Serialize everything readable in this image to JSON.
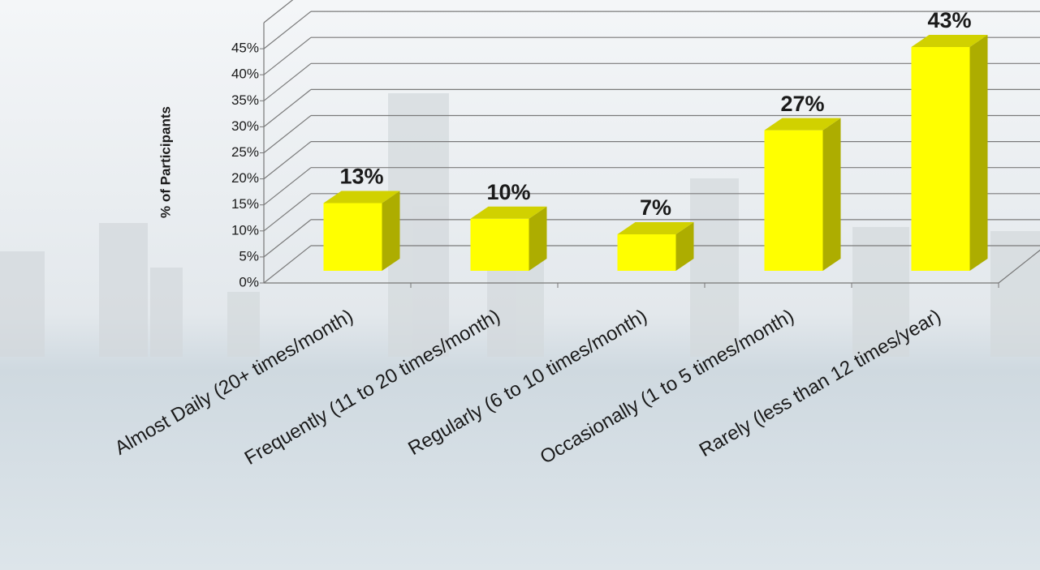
{
  "chart_data": {
    "type": "bar",
    "y_label": "% of Participants",
    "categories": [
      "Almost Daily (20+ times/month)",
      "Frequently (11 to 20 times/month)",
      "Regularly (6 to 10 times/month)",
      "Occasionally (1 to 5 times/month)",
      "Rarely (less than 12 times/year)"
    ],
    "values": [
      13,
      10,
      7,
      27,
      43
    ],
    "value_labels": [
      "13%",
      "10%",
      "7%",
      "27%",
      "43%"
    ],
    "color": "#ffff00",
    "ylim": [
      0,
      50
    ],
    "yticks": [
      {
        "value": 0,
        "label": "0%"
      },
      {
        "value": 5,
        "label": "5%"
      },
      {
        "value": 10,
        "label": "10%"
      },
      {
        "value": 15,
        "label": "15%"
      },
      {
        "value": 20,
        "label": "20%"
      },
      {
        "value": 25,
        "label": "25%"
      },
      {
        "value": 30,
        "label": "30%"
      },
      {
        "value": 35,
        "label": "35%"
      },
      {
        "value": 40,
        "label": "40%"
      },
      {
        "value": 45,
        "label": "45%"
      }
    ],
    "grid": true
  }
}
